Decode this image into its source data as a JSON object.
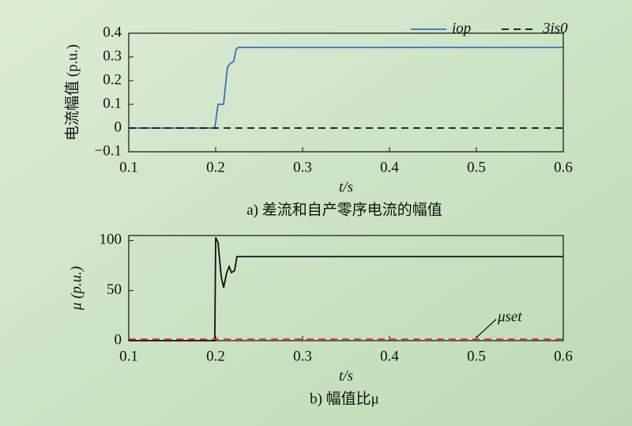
{
  "chart_data": [
    {
      "type": "line",
      "ylabel": "电流幅值 (p.u.)",
      "xlabel": "t/s",
      "subtitle": "a) 差流和自产零序电流的幅值",
      "xlim": [
        0.1,
        0.6
      ],
      "ylim": [
        -0.1,
        0.4
      ],
      "xticks": [
        0.1,
        0.2,
        0.3,
        0.4,
        0.5,
        0.6
      ],
      "yticks": [
        0.4,
        0.3,
        0.2,
        0.1,
        0,
        {
          "value": -0.1,
          "label": "−0.1"
        }
      ],
      "legend": "upper right",
      "series": [
        {
          "name": "iop",
          "color": "#3a6fc4",
          "style": "solid",
          "x": [
            0.1,
            0.199,
            0.2027,
            0.209,
            0.2136,
            0.217,
            0.2206,
            0.2236,
            0.226,
            0.6
          ],
          "values": [
            0,
            0,
            0.1,
            0.1,
            0.257,
            0.273,
            0.28,
            0.333,
            0.34,
            0.34
          ]
        },
        {
          "name": "3is0",
          "color": "#111111",
          "style": "dashed",
          "x": [
            0.1,
            0.6
          ],
          "values": [
            0,
            0
          ]
        }
      ]
    },
    {
      "type": "line",
      "ylabel": "μ (p.u.)",
      "xlabel": "t/s",
      "subtitle": "b) 幅值比μ",
      "annotation": "μset",
      "xlim": [
        0.1,
        0.6
      ],
      "ylim": [
        0,
        105
      ],
      "xticks": [
        0.1,
        0.2,
        0.3,
        0.4,
        0.5,
        0.6
      ],
      "yticks": [
        100,
        50,
        0
      ],
      "series": [
        {
          "color": "#111111",
          "style": "solid",
          "x": [
            0.1,
            0.199,
            0.2,
            0.2027,
            0.2064,
            0.2091,
            0.2127,
            0.2155,
            0.2182,
            0.2218,
            0.2245,
            0.6
          ],
          "values": [
            0,
            0,
            103,
            98,
            64,
            53,
            68,
            74,
            68,
            70,
            84,
            84
          ]
        },
        {
          "color": "#e0302a",
          "style": "dashed",
          "x": [
            0.1,
            0.6
          ],
          "values": [
            1.5,
            1.5
          ]
        }
      ]
    }
  ]
}
